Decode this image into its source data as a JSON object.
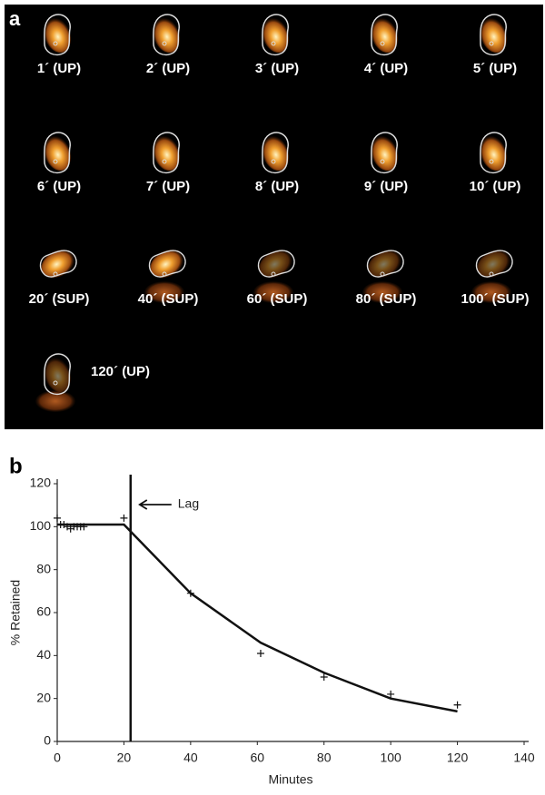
{
  "panel_a": {
    "label": "a",
    "frames": [
      "1´ (UP)",
      "2´ (UP)",
      "3´ (UP)",
      "4´ (UP)",
      "5´ (UP)",
      "6´ (UP)",
      "7´ (UP)",
      "8´ (UP)",
      "9´ (UP)",
      "10´ (UP)",
      "20´ (SUP)",
      "40´ (SUP)",
      "60´ (SUP)",
      "80´ (SUP)",
      "100´ (SUP)",
      "120´ (UP)"
    ]
  },
  "chart_data": {
    "type": "scatter",
    "panel_label": "b",
    "x_label": "Minutes",
    "y_label": "% Retained",
    "points": {
      "x": [
        0,
        1,
        2,
        3,
        4,
        5,
        6,
        7,
        8,
        20,
        40,
        61,
        80,
        100,
        120
      ],
      "y": [
        104,
        101,
        101,
        100,
        99,
        100,
        100,
        100,
        100,
        104,
        69,
        41,
        30,
        22,
        17
      ]
    },
    "fit_line": {
      "x": [
        0,
        20,
        40,
        61,
        80,
        100,
        120
      ],
      "y": [
        101,
        101,
        69,
        46,
        32,
        20,
        14
      ]
    },
    "lag": {
      "x": 22,
      "label": "Lag"
    },
    "xlim": [
      0,
      140
    ],
    "ylim": [
      0,
      120
    ],
    "xticks": [
      0,
      20,
      40,
      60,
      80,
      100,
      120,
      140
    ],
    "yticks": [
      0,
      20,
      40,
      60,
      80,
      100,
      120
    ]
  }
}
